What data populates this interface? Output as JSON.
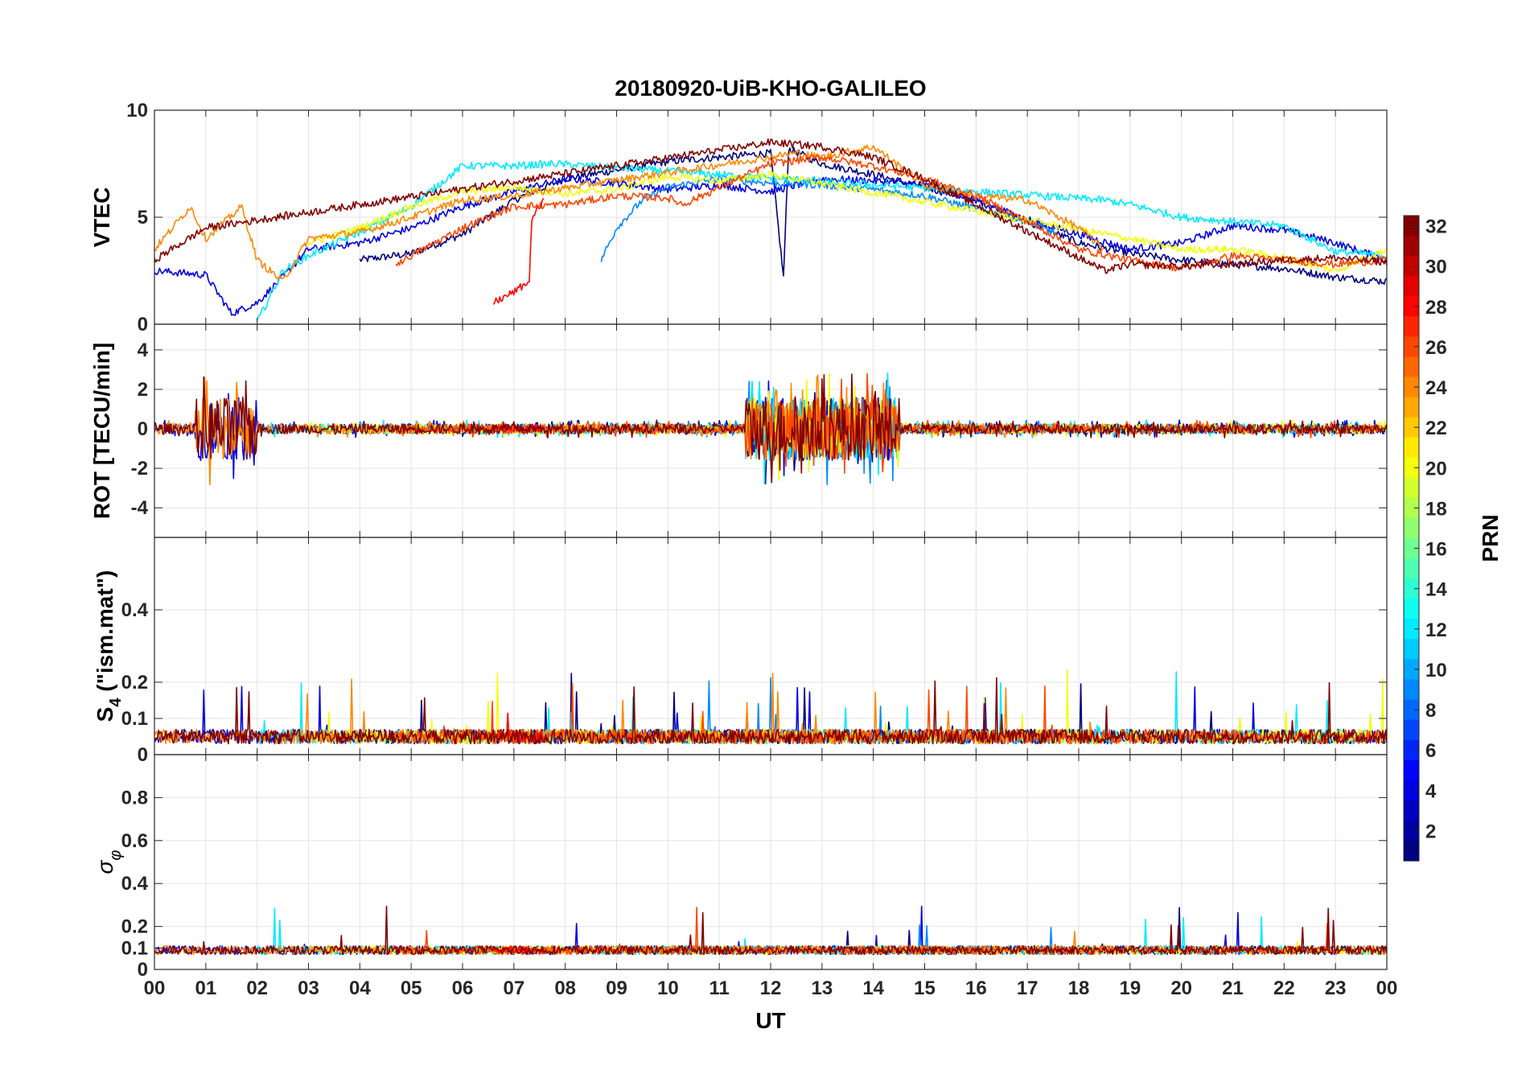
{
  "chart_data": {
    "type": "line",
    "title": "20180920-UiB-KHO-GALILEO",
    "xlabel": "UT",
    "x_tick_labels": [
      "00",
      "01",
      "02",
      "03",
      "04",
      "05",
      "06",
      "07",
      "08",
      "09",
      "10",
      "11",
      "12",
      "13",
      "14",
      "15",
      "16",
      "17",
      "18",
      "19",
      "20",
      "21",
      "22",
      "23",
      "00"
    ],
    "xlim": [
      0,
      24
    ],
    "grid": true,
    "panels": [
      {
        "key": "vtec",
        "ylabel": "VTEC",
        "ylim": [
          0,
          10
        ],
        "yticks": [
          0,
          5,
          10
        ]
      },
      {
        "key": "rot",
        "ylabel": "ROT [TECU/min]",
        "ylim": [
          -5.5,
          5.3
        ],
        "yticks": [
          -4,
          -2,
          0,
          2,
          4
        ]
      },
      {
        "key": "s4",
        "ylabel_main": "S",
        "ylabel_sub": "4",
        "ylabel_rest": " (\"ism.mat\")",
        "ylim": [
          0,
          0.6
        ],
        "yticks": [
          0,
          0.1,
          0.2,
          0.4
        ]
      },
      {
        "key": "sigma",
        "ylabel_main": "σ",
        "ylabel_sub": "φ",
        "ylim": [
          0,
          1.0
        ],
        "yticks": [
          0,
          0.1,
          0.2,
          0.4,
          0.6,
          0.8
        ]
      }
    ],
    "colorbar": {
      "label": "PRN",
      "range": [
        1,
        32
      ],
      "tick_labels": [
        "2",
        "4",
        "6",
        "8",
        "10",
        "12",
        "14",
        "16",
        "18",
        "20",
        "22",
        "24",
        "26",
        "28",
        "30",
        "32"
      ],
      "colormap": "jet"
    },
    "series": [
      {
        "prn": 1,
        "vtec": [
          [
            4.0,
            3.0
          ],
          [
            5.0,
            3.3
          ],
          [
            6.0,
            4.2
          ],
          [
            7.0,
            5.8
          ],
          [
            8.0,
            6.8
          ],
          [
            9.0,
            7.2
          ],
          [
            10.0,
            7.6
          ],
          [
            11.0,
            7.8
          ],
          [
            12.0,
            8.0
          ],
          [
            12.25,
            2.2
          ],
          [
            12.35,
            8.2
          ],
          [
            13.0,
            7.5
          ],
          [
            14.0,
            7.0
          ],
          [
            15.0,
            6.4
          ],
          [
            16.0,
            5.8
          ],
          [
            17.0,
            4.8
          ],
          [
            18.0,
            3.8
          ],
          [
            19.0,
            3.3
          ],
          [
            20.0,
            3.0
          ],
          [
            21.0,
            2.8
          ],
          [
            22.0,
            2.6
          ],
          [
            23.0,
            2.2
          ],
          [
            24.0,
            2.0
          ]
        ]
      },
      {
        "prn": 4,
        "vtec": [
          [
            0.0,
            2.5
          ],
          [
            1.0,
            2.3
          ],
          [
            1.5,
            0.5
          ],
          [
            2.0,
            1.0
          ],
          [
            2.5,
            2.2
          ],
          [
            3.0,
            3.5
          ],
          [
            4.0,
            3.8
          ],
          [
            5.0,
            4.5
          ],
          [
            6.0,
            5.5
          ],
          [
            7.0,
            6.2
          ],
          [
            8.0,
            6.8
          ],
          [
            9.0,
            6.6
          ],
          [
            10.0,
            6.3
          ],
          [
            11.0,
            6.5
          ],
          [
            12.0,
            6.2
          ],
          [
            13.0,
            6.8
          ],
          [
            14.0,
            6.7
          ],
          [
            15.0,
            6.5
          ],
          [
            16.0,
            5.8
          ],
          [
            17.0,
            4.9
          ],
          [
            18.0,
            4.2
          ],
          [
            19.0,
            3.5
          ],
          [
            20.0,
            3.8
          ],
          [
            21.0,
            4.6
          ],
          [
            22.0,
            4.4
          ],
          [
            23.0,
            3.8
          ],
          [
            24.0,
            3.0
          ]
        ]
      },
      {
        "prn": 9,
        "vtec": [
          [
            8.7,
            3.0
          ],
          [
            9.0,
            4.5
          ],
          [
            9.5,
            5.8
          ],
          [
            10.0,
            6.4
          ],
          [
            11.0,
            6.8
          ],
          [
            12.0,
            6.6
          ],
          [
            13.0,
            6.5
          ],
          [
            14.0,
            6.3
          ],
          [
            15.0,
            6.0
          ],
          [
            16.0,
            5.4
          ],
          [
            17.0,
            4.8
          ],
          [
            17.6,
            4.2
          ]
        ]
      },
      {
        "prn": 12,
        "vtec": [
          [
            2.0,
            0.1
          ],
          [
            2.5,
            2.5
          ],
          [
            3.0,
            3.2
          ],
          [
            4.0,
            4.3
          ],
          [
            5.0,
            5.5
          ],
          [
            6.0,
            7.4
          ],
          [
            7.0,
            7.4
          ],
          [
            7.8,
            7.5
          ],
          [
            18.5,
            5.8
          ],
          [
            19.0,
            5.6
          ],
          [
            20.0,
            5.0
          ],
          [
            21.0,
            4.8
          ],
          [
            22.0,
            4.6
          ],
          [
            23.0,
            3.4
          ],
          [
            24.0,
            3.2
          ]
        ]
      },
      {
        "prn": 20,
        "vtec": [
          [
            3.0,
            3.8
          ],
          [
            4.0,
            4.5
          ],
          [
            5.0,
            5.5
          ],
          [
            6.0,
            6.2
          ],
          [
            7.0,
            6.4
          ],
          [
            8.0,
            6.1
          ],
          [
            9.0,
            6.3
          ],
          [
            10.0,
            6.9
          ],
          [
            11.0,
            6.7
          ],
          [
            12.0,
            7.0
          ],
          [
            19.0,
            4.0
          ],
          [
            20.0,
            3.5
          ],
          [
            21.0,
            3.5
          ],
          [
            22.0,
            3.1
          ],
          [
            23.0,
            2.5
          ],
          [
            24.0,
            3.5
          ]
        ]
      },
      {
        "prn": 24,
        "vtec": [
          [
            0.0,
            3.5
          ],
          [
            0.7,
            5.5
          ],
          [
            1.0,
            4.0
          ],
          [
            1.7,
            5.5
          ],
          [
            2.0,
            3.0
          ],
          [
            2.5,
            2.0
          ],
          [
            3.0,
            4.0
          ],
          [
            4.0,
            4.3
          ],
          [
            5.0,
            5.0
          ],
          [
            6.0,
            5.8
          ],
          [
            7.0,
            6.0
          ],
          [
            12.5,
            8.0
          ],
          [
            13.0,
            7.8
          ],
          [
            14.0,
            8.3
          ],
          [
            15.0,
            6.5
          ],
          [
            16.0,
            6.0
          ],
          [
            17.0,
            5.8
          ],
          [
            18.0,
            4.5
          ],
          [
            18.5,
            3.5
          ]
        ]
      },
      {
        "prn": 26,
        "vtec": [
          [
            4.7,
            2.8
          ],
          [
            5.0,
            3.2
          ],
          [
            6.0,
            4.5
          ],
          [
            7.0,
            5.5
          ],
          [
            8.0,
            5.6
          ],
          [
            9.0,
            6.0
          ],
          [
            10.0,
            5.9
          ],
          [
            10.3,
            5.6
          ],
          [
            12.0,
            7.5
          ],
          [
            13.0,
            7.8
          ],
          [
            14.0,
            7.4
          ],
          [
            15.0,
            6.8
          ],
          [
            16.0,
            6.0
          ],
          [
            17.0,
            4.8
          ],
          [
            18.0,
            3.5
          ],
          [
            19.0,
            3.0
          ],
          [
            20.0,
            2.6
          ],
          [
            21.0,
            3.2
          ],
          [
            22.0,
            3.0
          ],
          [
            23.0,
            2.8
          ],
          [
            24.0,
            3.0
          ]
        ]
      },
      {
        "prn": 28,
        "vtec": [
          [
            6.6,
            1.0
          ],
          [
            7.0,
            1.5
          ],
          [
            7.3,
            2.0
          ],
          [
            7.35,
            5.0
          ],
          [
            7.6,
            5.8
          ]
        ]
      },
      {
        "prn": 32,
        "vtec": [
          [
            0.0,
            3.0
          ],
          [
            1.0,
            4.5
          ],
          [
            12.0,
            8.5
          ],
          [
            13.0,
            8.3
          ],
          [
            14.0,
            7.8
          ],
          [
            15.0,
            6.8
          ],
          [
            18.5,
            2.5
          ],
          [
            19.0,
            2.8
          ],
          [
            20.0,
            2.7
          ],
          [
            21.0,
            2.8
          ],
          [
            22.0,
            3.0
          ],
          [
            23.0,
            3.1
          ],
          [
            24.0,
            2.9
          ]
        ]
      }
    ]
  }
}
